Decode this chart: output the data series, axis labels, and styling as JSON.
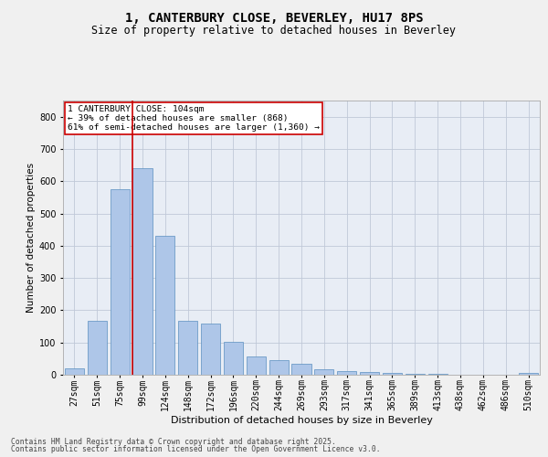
{
  "title": "1, CANTERBURY CLOSE, BEVERLEY, HU17 8PS",
  "subtitle": "Size of property relative to detached houses in Beverley",
  "xlabel": "Distribution of detached houses by size in Beverley",
  "ylabel": "Number of detached properties",
  "categories": [
    "27sqm",
    "51sqm",
    "75sqm",
    "99sqm",
    "124sqm",
    "148sqm",
    "172sqm",
    "196sqm",
    "220sqm",
    "244sqm",
    "269sqm",
    "293sqm",
    "317sqm",
    "341sqm",
    "365sqm",
    "389sqm",
    "413sqm",
    "438sqm",
    "462sqm",
    "486sqm",
    "510sqm"
  ],
  "values": [
    20,
    168,
    575,
    640,
    432,
    168,
    160,
    103,
    57,
    45,
    35,
    17,
    10,
    8,
    5,
    3,
    2,
    1,
    0,
    0,
    5
  ],
  "bar_color": "#aec6e8",
  "bar_edge_color": "#5a8fc0",
  "grid_color": "#c0c8d8",
  "bg_color": "#e8edf5",
  "fig_bg_color": "#f0f0f0",
  "vline_color": "#cc0000",
  "vline_index": 3,
  "annotation_text": "1 CANTERBURY CLOSE: 104sqm\n← 39% of detached houses are smaller (868)\n61% of semi-detached houses are larger (1,360) →",
  "annotation_box_color": "#ffffff",
  "annotation_box_edge": "#cc0000",
  "footer1": "Contains HM Land Registry data © Crown copyright and database right 2025.",
  "footer2": "Contains public sector information licensed under the Open Government Licence v3.0.",
  "ylim": [
    0,
    850
  ],
  "yticks": [
    0,
    100,
    200,
    300,
    400,
    500,
    600,
    700,
    800
  ],
  "title_fontsize": 10,
  "subtitle_fontsize": 8.5,
  "ylabel_fontsize": 7.5,
  "xlabel_fontsize": 8,
  "tick_fontsize": 7,
  "annotation_fontsize": 6.8,
  "footer_fontsize": 5.8
}
